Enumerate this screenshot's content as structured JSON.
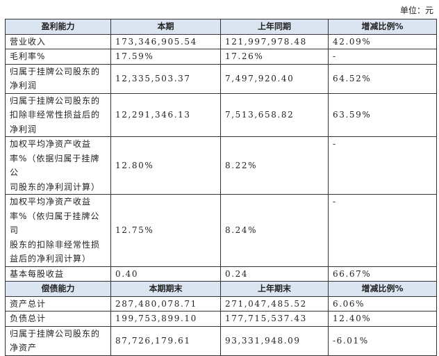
{
  "unit": "单位：元",
  "table": {
    "sections": [
      {
        "header": [
          "盈利能力",
          "本期",
          "上年同期",
          "增减比例%"
        ],
        "rows": [
          [
            [
              "营业收入"
            ],
            "173,346,905.54",
            "121,997,978.48",
            "42.09%"
          ],
          [
            [
              "毛利率%"
            ],
            "17.59%",
            "17.26%",
            "-"
          ],
          [
            [
              "归属于挂牌公司股东的",
              "净利润"
            ],
            "12,335,503.37",
            "7,497,920.40",
            "64.52%"
          ],
          [
            [
              "归属于挂牌公司股东的",
              "扣除非经常性损益后的",
              "净利润"
            ],
            "12,291,346.13",
            "7,513,658.82",
            "63.59%"
          ],
          [
            [
              "加权平均净资产收益",
              "率%（依据归属于挂牌公",
              "司股东的净利润计算）"
            ],
            "12.80%",
            "8.22%",
            "-"
          ],
          [
            [
              "加权平均净资产收益",
              "率%（依归属于挂牌公司",
              "股东的扣除非经常性损",
              "益后的净利润计算）"
            ],
            "12.75%",
            "8.24%",
            "-"
          ],
          [
            [
              "基本每股收益"
            ],
            "0.40",
            "0.24",
            "66.67%"
          ]
        ]
      },
      {
        "header": [
          "偿债能力",
          "本期期末",
          "上年期末",
          "增减比例%"
        ],
        "rows": [
          [
            [
              "资产总计"
            ],
            "287,480,078.71",
            "271,047,485.52",
            "6.06%"
          ],
          [
            [
              "负债总计"
            ],
            "199,753,899.10",
            "177,715,537.43",
            "12.40%"
          ],
          [
            [
              "归属于挂牌公司股东的",
              "净资产"
            ],
            "87,726,179.61",
            "93,331,948.09",
            "-6.01%"
          ]
        ]
      }
    ]
  }
}
